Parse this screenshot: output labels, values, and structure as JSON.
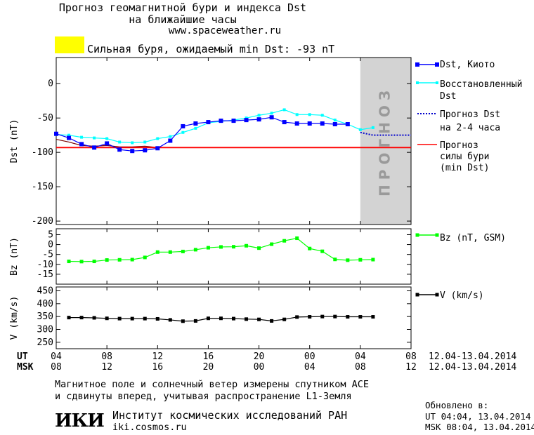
{
  "header": {
    "title_line1": "Прогноз геомагнитной бури и индекса Dst",
    "title_line2": "на ближайшие часы",
    "site": "www.spaceweather.ru",
    "storm_text": "Сильная буря, ожидаемый min Dst: -93 nT",
    "storm_color": "#ffff00"
  },
  "colors": {
    "dst_kyoto": "#0000ff",
    "dst_restored": "#00ffff",
    "dst_forecast": "#0000cc",
    "storm_level": "#ff0000",
    "bz": "#00ff00",
    "v": "#000000",
    "forecast_band": "#d3d3d3"
  },
  "chart_data": [
    {
      "type": "line",
      "ylabel": "Dst (nT)",
      "ylim": [
        -205,
        38
      ],
      "yticks": [
        0,
        -50,
        -100,
        -150,
        -200
      ],
      "ytick_labels": [
        "0",
        "-50",
        "-100",
        "-150",
        "-200"
      ],
      "forecast_band_label": "ПРОГНОЗ",
      "forecast_band_range": [
        24,
        28
      ],
      "series": [
        {
          "name": "Dst, Киото",
          "x": [
            0,
            1,
            2,
            3,
            4,
            5,
            6,
            7,
            8,
            9,
            10,
            11,
            12,
            13,
            14,
            15,
            16,
            17,
            18,
            19,
            20,
            21,
            22,
            23
          ],
          "values": [
            -73,
            -79,
            -88,
            -93,
            -87,
            -96,
            -98,
            -97,
            -94,
            -83,
            -62,
            -58,
            -56,
            -54,
            -54,
            -53,
            -52,
            -49,
            -56,
            -58,
            -58,
            -58,
            -59,
            -59
          ]
        },
        {
          "name": "Восстановленный Dst",
          "x": [
            0,
            1,
            2,
            3,
            4,
            5,
            6,
            7,
            8,
            9,
            10,
            11,
            12,
            13,
            14,
            15,
            16,
            17,
            18,
            19,
            20,
            21,
            22,
            23,
            24,
            25
          ],
          "values": [
            -74,
            -75,
            -78,
            -79,
            -80,
            -85,
            -86,
            -85,
            -80,
            -77,
            -71,
            -65,
            -57,
            -55,
            -53,
            -50,
            -46,
            -43,
            -38,
            -45,
            -45,
            -46,
            -53,
            -59,
            -67,
            -64
          ]
        },
        {
          "name": "Прогноз Dst на 2-4 часа",
          "x": [
            24,
            25,
            26,
            27,
            28
          ],
          "values": [
            -71,
            -75,
            -75,
            -75,
            -75
          ]
        },
        {
          "name": "Прогноз силы бури (min Dst)",
          "x": [
            0,
            28
          ],
          "values": [
            -93,
            -93
          ]
        }
      ],
      "storm_history": {
        "x": [
          0,
          1,
          2,
          3,
          4,
          5,
          6,
          7,
          8
        ],
        "values": [
          -81,
          -85,
          -90,
          -91,
          -90,
          -92,
          -92,
          -91,
          -93
        ]
      }
    },
    {
      "type": "line",
      "ylabel": "Bz (nT)",
      "ylim": [
        -20,
        8
      ],
      "yticks": [
        5,
        0,
        -5,
        -10,
        -15
      ],
      "ytick_labels": [
        "5",
        "0",
        "-5",
        "-10",
        "-15"
      ],
      "series": [
        {
          "name": "Bz (nT, GSM)",
          "x": [
            1,
            2,
            3,
            4,
            5,
            6,
            7,
            8,
            9,
            10,
            11,
            12,
            13,
            14,
            15,
            16,
            17,
            18,
            19,
            20,
            21,
            22,
            23,
            24,
            25
          ],
          "values": [
            -8.5,
            -8.6,
            -8.5,
            -7.8,
            -7.7,
            -7.6,
            -6.5,
            -3.8,
            -3.8,
            -3.5,
            -2.6,
            -1.6,
            -1.2,
            -1.1,
            -0.6,
            -1.8,
            0.2,
            1.9,
            3.2,
            -2.0,
            -3.4,
            -7.5,
            -7.9,
            -7.7,
            -7.6
          ]
        }
      ]
    },
    {
      "type": "line",
      "ylabel": "V (km/s)",
      "ylim": [
        225,
        465
      ],
      "yticks": [
        450,
        400,
        350,
        300,
        250
      ],
      "ytick_labels": [
        "450",
        "400",
        "350",
        "300",
        "250"
      ],
      "series": [
        {
          "name": "V (km/s)",
          "x": [
            1,
            2,
            3,
            4,
            5,
            6,
            7,
            8,
            9,
            10,
            11,
            12,
            13,
            14,
            15,
            16,
            17,
            18,
            19,
            20,
            21,
            22,
            23,
            24,
            25
          ],
          "values": [
            346,
            346,
            345,
            343,
            342,
            342,
            342,
            341,
            337,
            332,
            333,
            343,
            343,
            342,
            340,
            339,
            333,
            339,
            348,
            349,
            350,
            350,
            349,
            349,
            349
          ]
        }
      ]
    }
  ],
  "x_axis": {
    "xlim": [
      0,
      28
    ],
    "ticks": [
      0,
      4,
      8,
      12,
      16,
      20,
      24,
      28
    ],
    "ut_label": "UT",
    "ut_ticks": [
      "04",
      "08",
      "12",
      "16",
      "20",
      "00",
      "04",
      "08"
    ],
    "msk_label": "MSK",
    "msk_ticks": [
      "08",
      "12",
      "16",
      "20",
      "00",
      "04",
      "08",
      "12"
    ],
    "ut_range": "12.04-13.04.2014",
    "msk_range": "12.04-13.04.2014"
  },
  "legend": {
    "dst_kyoto": "Dst, Киото",
    "restored_1": "Восстановленный",
    "restored_2": "Dst",
    "forecast_1": "Прогноз Dst",
    "forecast_2": "на 2-4 часа",
    "storm_1": "Прогноз",
    "storm_2": "силы бури",
    "storm_3": "(min Dst)",
    "bz": "Bz (nT, GSM)",
    "v": "V (km/s)"
  },
  "footer": {
    "note_line1": "Магнитное поле и солнечный ветер измерены спутником ACE",
    "note_line2": "и сдвинуты вперед, учитывая распространение L1-Земля",
    "logo": "ИКИ",
    "institute": "Институт космических исследований РАН",
    "institute_url": "iki.cosmos.ru",
    "updated_title": "Обновлено в:",
    "updated_ut": "UT  04:04, 13.04.2014",
    "updated_msk": "MSK 08:04, 13.04.2014"
  }
}
